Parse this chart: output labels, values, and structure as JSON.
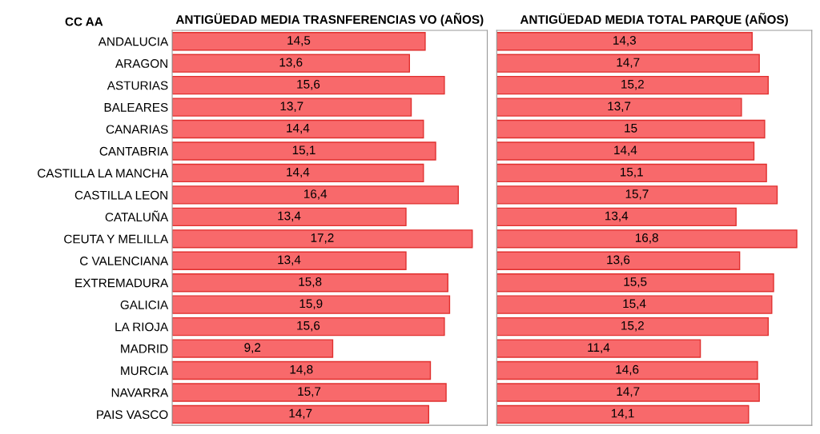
{
  "chart_data": [
    {
      "type": "bar",
      "orientation": "horizontal",
      "title": "ANTIGÜEDAD MEDIA TRASNFERENCIAS VO (AÑOS)",
      "ylabel": "CC AA",
      "categories": [
        "ANDALUCIA",
        "ARAGON",
        "ASTURIAS",
        "BALEARES",
        "CANARIAS",
        "CANTABRIA",
        "CASTILLA LA MANCHA",
        "CASTILLA LEON",
        "CATALUÑA",
        "CEUTA Y MELILLA",
        "C VALENCIANA",
        "EXTREMADURA",
        "GALICIA",
        "LA RIOJA",
        "MADRID",
        "MURCIA",
        "NAVARRA",
        "PAIS VASCO"
      ],
      "values": [
        14.5,
        13.6,
        15.6,
        13.7,
        14.4,
        15.1,
        14.4,
        16.4,
        13.4,
        17.2,
        13.4,
        15.8,
        15.9,
        15.6,
        9.2,
        14.8,
        15.7,
        14.7
      ],
      "value_labels": [
        "14,5",
        "13,6",
        "15,6",
        "13,7",
        "14,4",
        "15,1",
        "14,4",
        "16,4",
        "13,4",
        "17,2",
        "13,4",
        "15,8",
        "15,9",
        "15,6",
        "9,2",
        "14,8",
        "15,7",
        "14,7"
      ],
      "color": "#f8696b",
      "grid": false,
      "legend": false,
      "tick_labels": "y"
    },
    {
      "type": "bar",
      "orientation": "horizontal",
      "title": "ANTIGÜEDAD MEDIA TOTAL PARQUE (AÑOS)",
      "categories": [
        null,
        null,
        null,
        null,
        null,
        null,
        null,
        null,
        null,
        null,
        null,
        null,
        null,
        null,
        null,
        null,
        null,
        null
      ],
      "values": [
        14.3,
        14.7,
        15.2,
        13.7,
        15,
        14.4,
        15.1,
        15.7,
        13.4,
        16.8,
        13.6,
        15.5,
        15.4,
        15.2,
        11.4,
        14.6,
        14.7,
        14.1
      ],
      "value_labels": [
        "14,3",
        "14,7",
        "15,2",
        "13,7",
        "15",
        "14,4",
        "15,1",
        "15,7",
        "13,4",
        "16,8",
        "13,6",
        "15,5",
        "15,4",
        "15,2",
        "11,4",
        "14,6",
        "14,7",
        "14,1"
      ],
      "color": "#f8696b",
      "grid": false,
      "legend": false,
      "tick_labels": false
    }
  ]
}
